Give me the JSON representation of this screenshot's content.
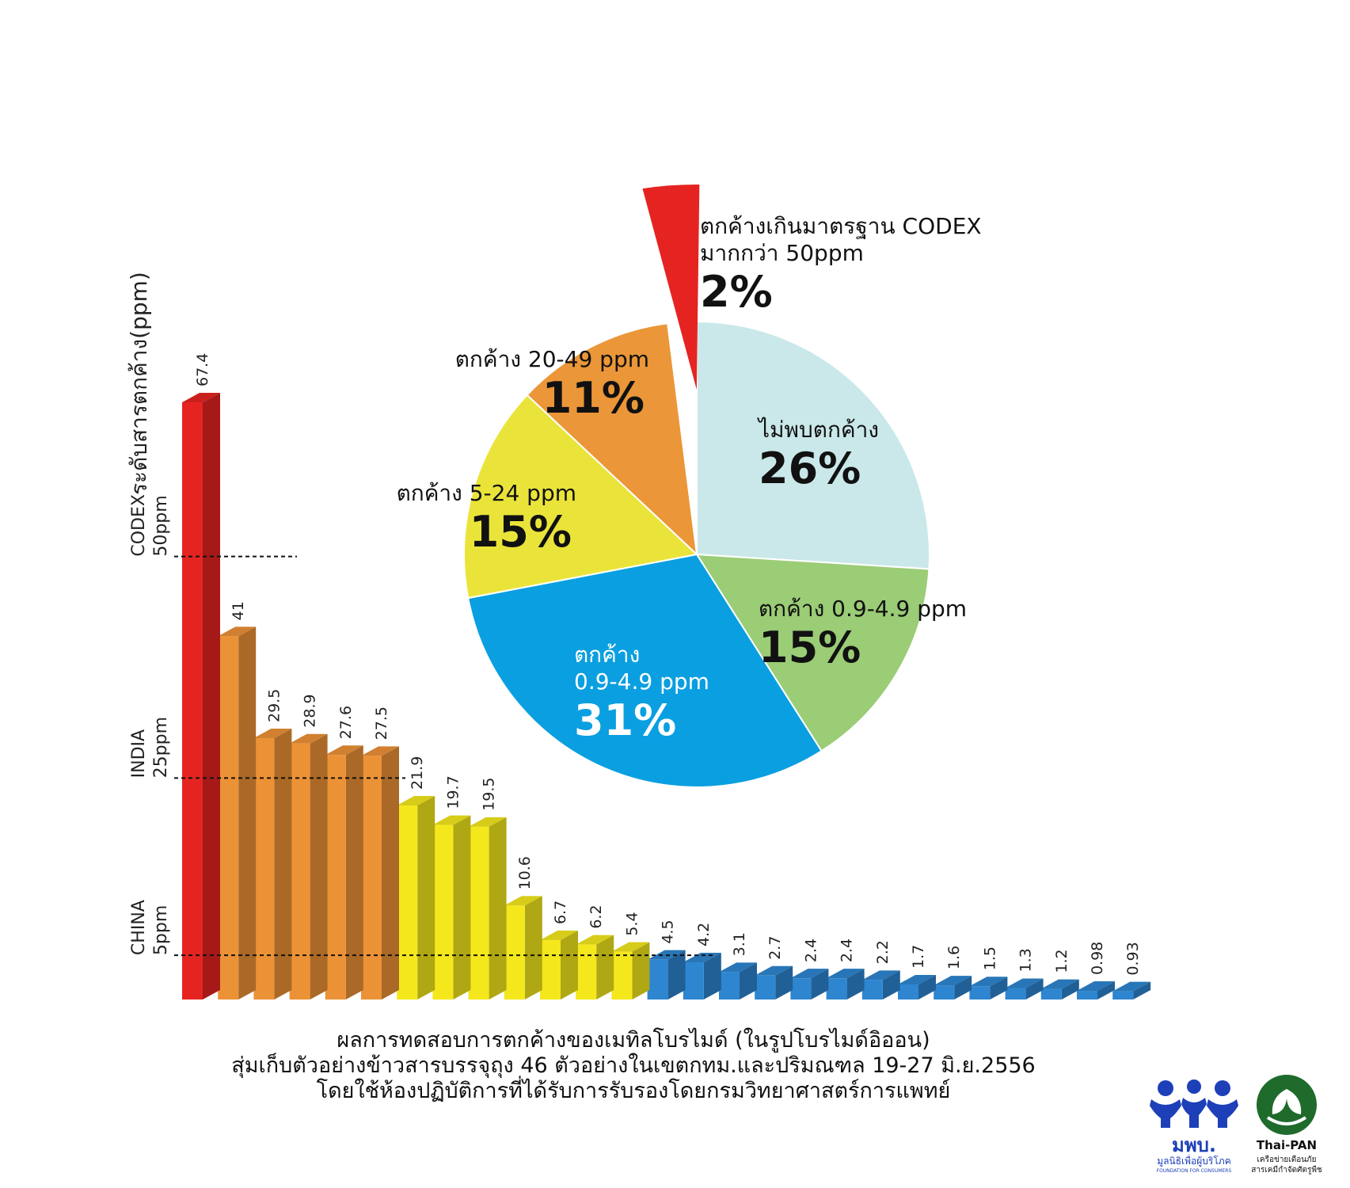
{
  "chart_data": [
    {
      "type": "bar",
      "ylabel": "ระดับสารตกค้าง(ppm)",
      "ylim": [
        0,
        70
      ],
      "values": [
        67.4,
        41,
        29.5,
        28.9,
        27.6,
        27.5,
        21.9,
        19.7,
        19.5,
        10.6,
        6.7,
        6.2,
        5.4,
        4.5,
        4.2,
        3.1,
        2.7,
        2.4,
        2.4,
        2.2,
        1.7,
        1.6,
        1.5,
        1.3,
        1.2,
        0.98,
        0.93
      ],
      "value_labels": [
        "67.4",
        "41",
        "29.5",
        "28.9",
        "27.6",
        "27.5",
        "21.9",
        "19.7",
        "19.5",
        "10.6",
        "6.7",
        "6.2",
        "5.4",
        "4.5",
        "4.2",
        "3.1",
        "2.7",
        "2.4",
        "2.4",
        "2.2",
        "1.7",
        "1.6",
        "1.5",
        "1.3",
        "1.2",
        "0.98",
        "0.93"
      ],
      "bar_colors": [
        "#e52421",
        "#ec9236",
        "#ec9236",
        "#ec9236",
        "#ec9236",
        "#ec9236",
        "#f4e81c",
        "#f4e81c",
        "#f4e81c",
        "#f4e81c",
        "#f4e81c",
        "#f4e81c",
        "#f4e81c",
        "#2e86d0",
        "#2e86d0",
        "#2e86d0",
        "#2e86d0",
        "#2e86d0",
        "#2e86d0",
        "#2e86d0",
        "#2e86d0",
        "#2e86d0",
        "#2e86d0",
        "#2e86d0",
        "#2e86d0",
        "#2e86d0",
        "#2e86d0"
      ],
      "reference_lines": [
        {
          "value": 50,
          "name": "CODEX",
          "label": "50ppm"
        },
        {
          "value": 25,
          "name": "INDIA",
          "label": "25ppm"
        },
        {
          "value": 5,
          "name": "CHINA",
          "label": "5ppm"
        }
      ],
      "grid": false
    },
    {
      "type": "pie",
      "slices": [
        {
          "label": "ไม่พบตกค้าง",
          "value": 26,
          "text": "26%",
          "color": "#cae8e9"
        },
        {
          "label": "ตกค้าง 0.9-4.9 ppm",
          "value": 15,
          "text": "15%",
          "color": "#9bcc76"
        },
        {
          "label": "ตกค้าง\n0.9-4.9 ppm",
          "value": 31,
          "text": "31%",
          "color": "#0a9fe0"
        },
        {
          "label": "ตกค้าง 5-24 ppm",
          "value": 15,
          "text": "15%",
          "color": "#eae43a"
        },
        {
          "label": "ตกค้าง 20-49 ppm",
          "value": 11,
          "text": "11%",
          "color": "#eb9638"
        },
        {
          "label": "ตกค้างเกินมาตรฐาน CODEX\nมากกว่า 50ppm",
          "value": 2,
          "text": "2%",
          "color": "#e52421"
        }
      ]
    }
  ],
  "caption": {
    "line1": "ผลการทดสอบการตกค้างของเมทิลโบรไมด์ (ในรูปโบรไมด์อิออน)",
    "line2": "สุ่มเก็บตัวอย่างข้าวสารบรรจุถุง 46 ตัวอย่างในเขตกทม.และปริมณฑล  19-27 มิ.ย.2556",
    "line3": "โดยใช้ห้องปฏิบัติการที่ได้รับการรับรองโดยกรมวิทยาศาสตร์การแพทย์"
  },
  "logos": {
    "ffc": {
      "mark": "มพบ.",
      "text": "มูลนิธิเพื่อผู้บริโภค",
      "sub": "FOUNDATION FOR CONSUMERS",
      "color": "#1d3fb8"
    },
    "thaipan": {
      "name": "Thai-PAN",
      "text1": "เครือข่ายเตือนภัย",
      "text2": "สารเคมีกำจัดศัตรูพืช",
      "color": "#1f6b2c"
    }
  }
}
